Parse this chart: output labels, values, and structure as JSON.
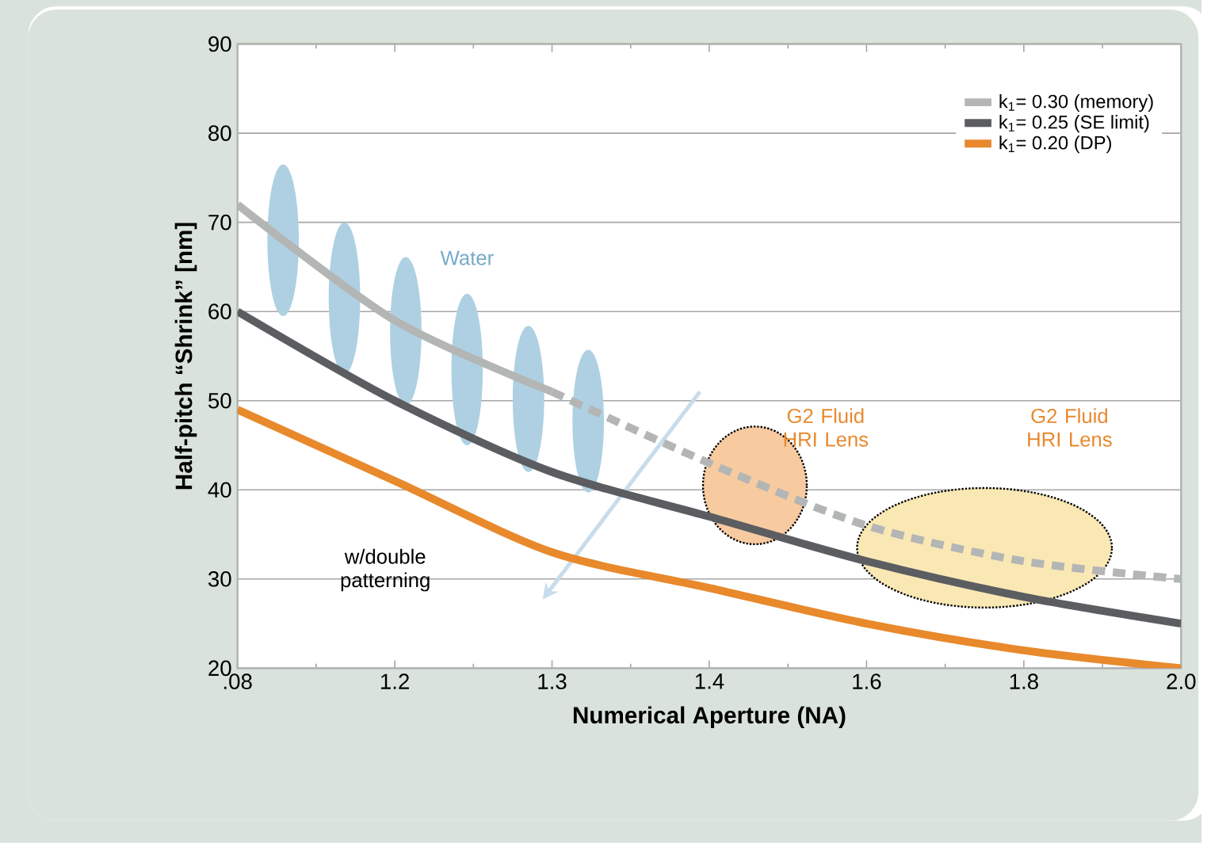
{
  "chart_data": {
    "type": "line",
    "xlabel": "Numerical Aperture (NA)",
    "ylabel": "Half-pitch “Shrink” [nm]",
    "categories": [
      ".08",
      "1.2",
      "1.3",
      "1.4",
      "1.6",
      "1.8",
      "2.0"
    ],
    "series": [
      {
        "name": "k$_{1}$= 0.30 (memory)",
        "color": "#b4b5b5",
        "values": [
          72,
          59,
          51,
          null,
          null,
          null,
          null
        ]
      },
      {
        "name": "k$_{1}$= 0.25 (SE limit)",
        "color": "#5b5d61",
        "values": [
          60,
          50,
          42,
          37,
          32,
          28,
          25
        ]
      },
      {
        "name": "k$_{1}$= 0.20 (DP)",
        "color": "#e8892c",
        "values": [
          49,
          41,
          33,
          29,
          25,
          22,
          20
        ]
      },
      {
        "color": "#b4b5b5",
        "line_style": "dashed",
        "values": [
          null,
          null,
          51,
          43,
          36,
          32,
          30
        ]
      }
    ],
    "ylim": [
      20,
      90
    ],
    "yticks": [
      20,
      30,
      40,
      50,
      60,
      70,
      80,
      90
    ],
    "grid": "y",
    "legend": "top right",
    "line_style": "solid",
    "annotations": [
      "Water",
      "G2 Fluid HRI Lens",
      "G2 Fluid HRI Lens",
      "w/double patterning"
    ]
  }
}
